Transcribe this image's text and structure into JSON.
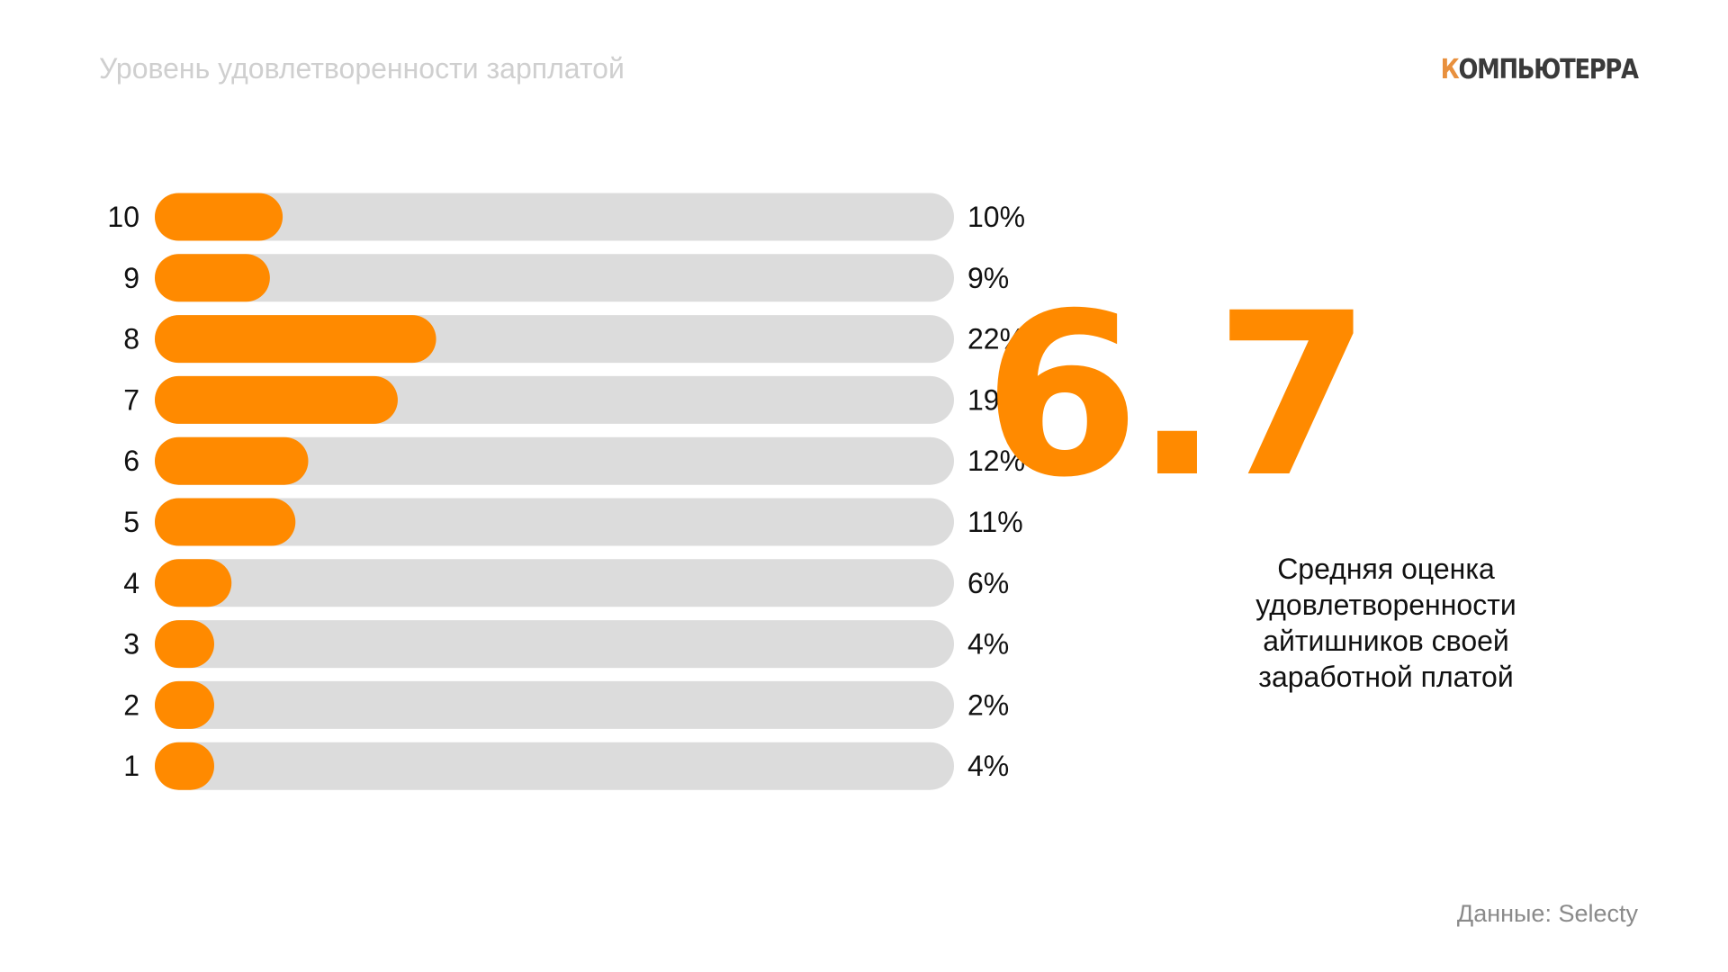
{
  "header": {
    "title": "Уровень удовлетворенности зарплатой",
    "logo_first": "К",
    "logo_rest": "ОМПЬЮТЕРРА"
  },
  "highlight": {
    "value": "6.7",
    "caption_lines": [
      "Средняя оценка",
      "удовлетворенности",
      "айтишников своей",
      "заработной платой"
    ]
  },
  "footer": {
    "source": "Данные: Selecty"
  },
  "colors": {
    "bar_fill": "#ff8a00",
    "bar_track": "#dcdcdc",
    "title": "#cfcfcf",
    "text": "#111111"
  },
  "chart_data": {
    "type": "bar",
    "orientation": "horizontal",
    "categories": [
      "10",
      "9",
      "8",
      "7",
      "6",
      "5",
      "4",
      "3",
      "2",
      "1"
    ],
    "values": [
      10,
      9,
      22,
      19,
      12,
      11,
      6,
      4,
      2,
      4
    ],
    "value_labels": [
      "10%",
      "9%",
      "22%",
      "19%",
      "12%",
      "11%",
      "6%",
      "4%",
      "2%",
      "4%"
    ],
    "unit": "%",
    "xlim": [
      0,
      100
    ],
    "grid": false,
    "legend": "none"
  }
}
